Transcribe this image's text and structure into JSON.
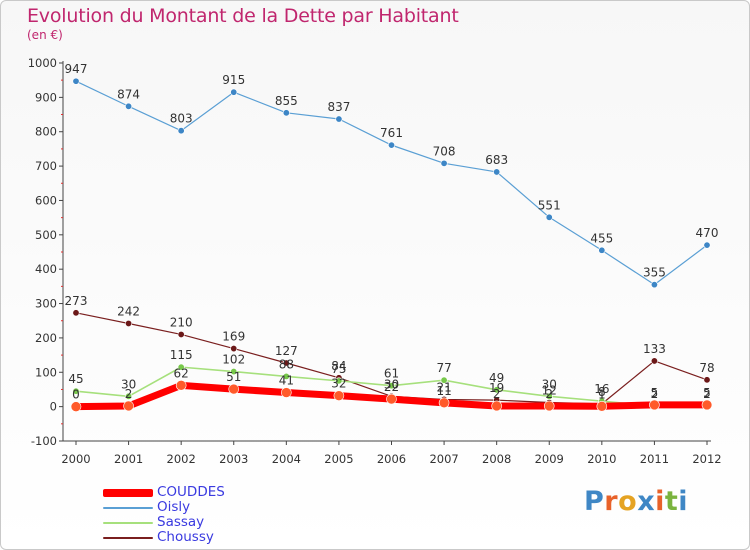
{
  "header": {
    "title": "Evolution du Montant de la Dette par Habitant",
    "subtitle": "(en €)"
  },
  "brand": {
    "letters": [
      "P",
      "r",
      "o",
      "x",
      "i",
      "t",
      "i"
    ],
    "colors": [
      "#3f87c5",
      "#e8622a",
      "#e5a323",
      "#3f87c5",
      "#e8622a",
      "#7ab33e",
      "#3f87c5"
    ]
  },
  "chart_data": {
    "type": "line",
    "title": "Evolution du Montant de la Dette par Habitant",
    "subtitle": "(en €)",
    "xlabel": "",
    "ylabel": "",
    "x": [
      "2000",
      "2001",
      "2002",
      "2003",
      "2004",
      "2005",
      "2006",
      "2007",
      "2008",
      "2009",
      "2010",
      "2011",
      "2012"
    ],
    "ylim": [
      -100,
      1000
    ],
    "yticks": [
      -100,
      0,
      100,
      200,
      300,
      400,
      500,
      600,
      700,
      800,
      900,
      1000
    ],
    "grid": false,
    "legend_position": "bottom-left",
    "series": [
      {
        "name": "COUDDES",
        "color": "#ff0000",
        "values": [
          0,
          2,
          62,
          51,
          41,
          32,
          22,
          11,
          2,
          2,
          1,
          5,
          5
        ],
        "labels": [
          "0",
          "2",
          "62",
          "51",
          "41",
          "32",
          "22",
          "11",
          "2",
          "2",
          "1",
          "5",
          "5"
        ]
      },
      {
        "name": "Oisly",
        "color": "#5a9fd4",
        "values": [
          947,
          874,
          803,
          915,
          855,
          837,
          761,
          708,
          683,
          551,
          455,
          355,
          470
        ],
        "labels": [
          "947",
          "874",
          "803",
          "915",
          "855",
          "837",
          "761",
          "708",
          "683",
          "551",
          "455",
          "355",
          "470"
        ]
      },
      {
        "name": "Sassay",
        "color": "#99d97a",
        "values": [
          45,
          30,
          115,
          102,
          88,
          75,
          61,
          77,
          49,
          30,
          16,
          2,
          2
        ],
        "labels": [
          "45",
          "30",
          "115",
          "102",
          "88",
          "75",
          "61",
          "77",
          "49",
          "30",
          "16",
          "2",
          "2"
        ]
      },
      {
        "name": "Choussy",
        "color": "#7a1f1f",
        "values": [
          273,
          242,
          210,
          169,
          127,
          84,
          30,
          21,
          19,
          12,
          8,
          133,
          78
        ],
        "labels": [
          "273",
          "242",
          "210",
          "169",
          "127",
          "84",
          "30",
          "21",
          "19",
          "12",
          "8",
          "133",
          "78"
        ]
      }
    ]
  }
}
